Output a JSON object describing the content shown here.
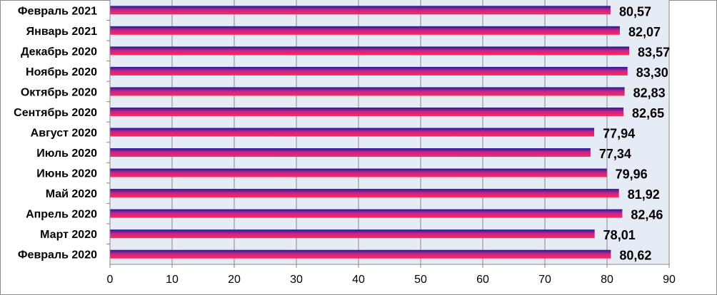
{
  "chart_data": {
    "type": "bar",
    "orientation": "horizontal",
    "categories": [
      "Февраль 2021",
      "Январь 2021",
      "Декабрь 2020",
      "Ноябрь 2020",
      "Октябрь 2020",
      "Сентябрь 2020",
      "Август 2020",
      "Июль 2020",
      "Июнь 2020",
      "Май 2020",
      "Апрель 2020",
      "Март 2020",
      "Февраль 2020"
    ],
    "values": [
      80.57,
      82.07,
      83.57,
      83.3,
      82.83,
      82.65,
      77.94,
      77.34,
      79.96,
      81.92,
      82.46,
      78.01,
      80.62
    ],
    "data_labels": [
      "80,57",
      "82,07",
      "83,57",
      "83,30",
      "82,83",
      "82,65",
      "77,94",
      "77,34",
      "79,96",
      "81,92",
      "82,46",
      "78,01",
      "80,62"
    ],
    "xlim": [
      0,
      90
    ],
    "xticks": [
      0,
      10,
      20,
      30,
      40,
      50,
      60,
      70,
      80,
      90
    ],
    "title": "",
    "xlabel": "",
    "ylabel": "",
    "grid": true,
    "legend": "none",
    "colors": {
      "plot_background": "#e6ecf6",
      "gridline": "#868686",
      "axis": "#868686",
      "bar_top": "#1f1a9c",
      "bar_mid": "#c2248a",
      "bar_bottom": "#ff2a5a"
    }
  }
}
